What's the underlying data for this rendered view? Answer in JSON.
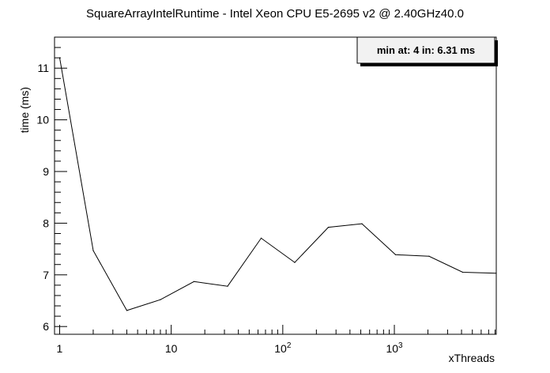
{
  "chart_data": {
    "type": "line",
    "title": "SquareArrayIntelRuntime - Intel Xeon CPU E5-2695 v2 @ 2.40GHz40.0",
    "xlabel": "xThreads",
    "ylabel": "time (ms)",
    "x_scale": "log",
    "xlim": [
      0.9,
      8192
    ],
    "ylim": [
      5.85,
      11.6
    ],
    "x_ticks": [
      {
        "value": 1,
        "label": "1",
        "exp": ""
      },
      {
        "value": 10,
        "label": "10",
        "exp": ""
      },
      {
        "value": 100,
        "label": "10",
        "exp": "2"
      },
      {
        "value": 1000,
        "label": "10",
        "exp": "3"
      }
    ],
    "y_ticks": [
      6,
      7,
      8,
      9,
      10,
      11
    ],
    "annotation": "min at: 4 in: 6.31 ms",
    "series": [
      {
        "x": [
          1,
          2,
          4,
          8,
          16,
          32,
          64,
          128,
          256,
          512,
          1024,
          2048,
          4096,
          8192
        ],
        "y": [
          11.2,
          7.47,
          6.31,
          6.52,
          6.87,
          6.78,
          7.71,
          7.24,
          7.92,
          7.99,
          7.39,
          7.36,
          7.05,
          7.03
        ]
      }
    ]
  }
}
